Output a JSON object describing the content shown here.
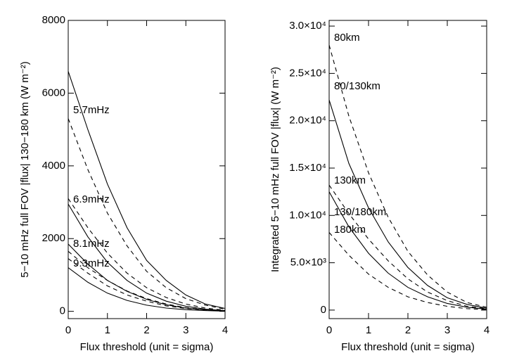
{
  "chart_data": [
    {
      "type": "line",
      "xlabel": "Flux threshold (unit = sigma)",
      "ylabel": "5−10 mHz full FOV |flux| 130−180 km (W m⁻²)",
      "xlim": [
        0,
        4
      ],
      "xticks": [
        0,
        1,
        2,
        3,
        4
      ],
      "ylim": [
        -200,
        8000
      ],
      "yticks": [
        0,
        2000,
        4000,
        6000,
        8000
      ],
      "x": [
        0,
        0.5,
        1,
        1.5,
        2,
        2.5,
        3,
        3.5,
        4
      ],
      "series": [
        {
          "name": "5.7mHz",
          "color": "#000000",
          "dashed": false,
          "values": [
            6600,
            5000,
            3500,
            2300,
            1400,
            850,
            450,
            200,
            80
          ]
        },
        {
          "color": "#000000",
          "dashed": true,
          "values": [
            5300,
            3900,
            2700,
            1800,
            1100,
            650,
            350,
            170,
            60
          ]
        },
        {
          "color": "#000000",
          "dashed": true,
          "values": [
            3100,
            2300,
            1600,
            1050,
            650,
            380,
            200,
            90,
            30
          ]
        },
        {
          "name": "6.9mHz",
          "color": "#000000",
          "dashed": false,
          "values": [
            2950,
            2050,
            1350,
            850,
            500,
            280,
            140,
            60,
            20
          ]
        },
        {
          "name": "8.1mHz",
          "color": "#000000",
          "dashed": false,
          "values": [
            1850,
            1300,
            850,
            550,
            330,
            180,
            90,
            40,
            15
          ]
        },
        {
          "color": "#000000",
          "dashed": true,
          "values": [
            1650,
            1200,
            850,
            560,
            350,
            200,
            100,
            45,
            15
          ]
        },
        {
          "color": "#000000",
          "dashed": true,
          "values": [
            1450,
            1050,
            700,
            450,
            280,
            150,
            80,
            35,
            10
          ]
        },
        {
          "name": "9.3mHz",
          "color": "#000000",
          "dashed": false,
          "values": [
            1200,
            800,
            500,
            300,
            170,
            90,
            45,
            20,
            5
          ]
        }
      ]
    },
    {
      "type": "line",
      "xlabel": "Flux threshold (unit = sigma)",
      "ylabel": "Integrated 5−10 mHz full FOV |flux| (W m⁻²)",
      "xlim": [
        0,
        4
      ],
      "xticks": [
        0,
        1,
        2,
        3,
        4
      ],
      "ylim": [
        -900,
        30600
      ],
      "yticks": [
        0,
        {
          "value": 5000,
          "label": "5.0×10³"
        },
        {
          "value": 10000,
          "label": "1.0×10⁴"
        },
        {
          "value": 15000,
          "label": "1.5×10⁴"
        },
        {
          "value": 20000,
          "label": "2.0×10⁴"
        },
        {
          "value": 25000,
          "label": "2.5×10⁴"
        },
        {
          "value": 30000,
          "label": "3.0×10⁴"
        }
      ],
      "x": [
        0,
        0.5,
        1,
        1.5,
        2,
        2.5,
        3,
        3.5,
        4
      ],
      "series": [
        {
          "name": "80km",
          "color": "#000000",
          "dashed": true,
          "values": [
            28000,
            20500,
            14500,
            9800,
            6200,
            3700,
            1900,
            800,
            300
          ]
        },
        {
          "name": "80/130km",
          "color": "#000000",
          "dashed": false,
          "values": [
            22200,
            15500,
            10800,
            7200,
            4500,
            2600,
            1300,
            600,
            200
          ]
        },
        {
          "name": "130km",
          "color": "#000000",
          "dashed": true,
          "values": [
            13200,
            10200,
            7500,
            5200,
            3300,
            1900,
            1000,
            400,
            150
          ]
        },
        {
          "name": "130/180km",
          "color": "#000000",
          "dashed": false,
          "values": [
            12500,
            8800,
            6000,
            3900,
            2400,
            1400,
            700,
            300,
            100
          ]
        },
        {
          "name": "180km",
          "color": "#000000",
          "dashed": true,
          "values": [
            8200,
            5800,
            3800,
            2400,
            1400,
            800,
            400,
            150,
            50
          ]
        }
      ]
    }
  ]
}
